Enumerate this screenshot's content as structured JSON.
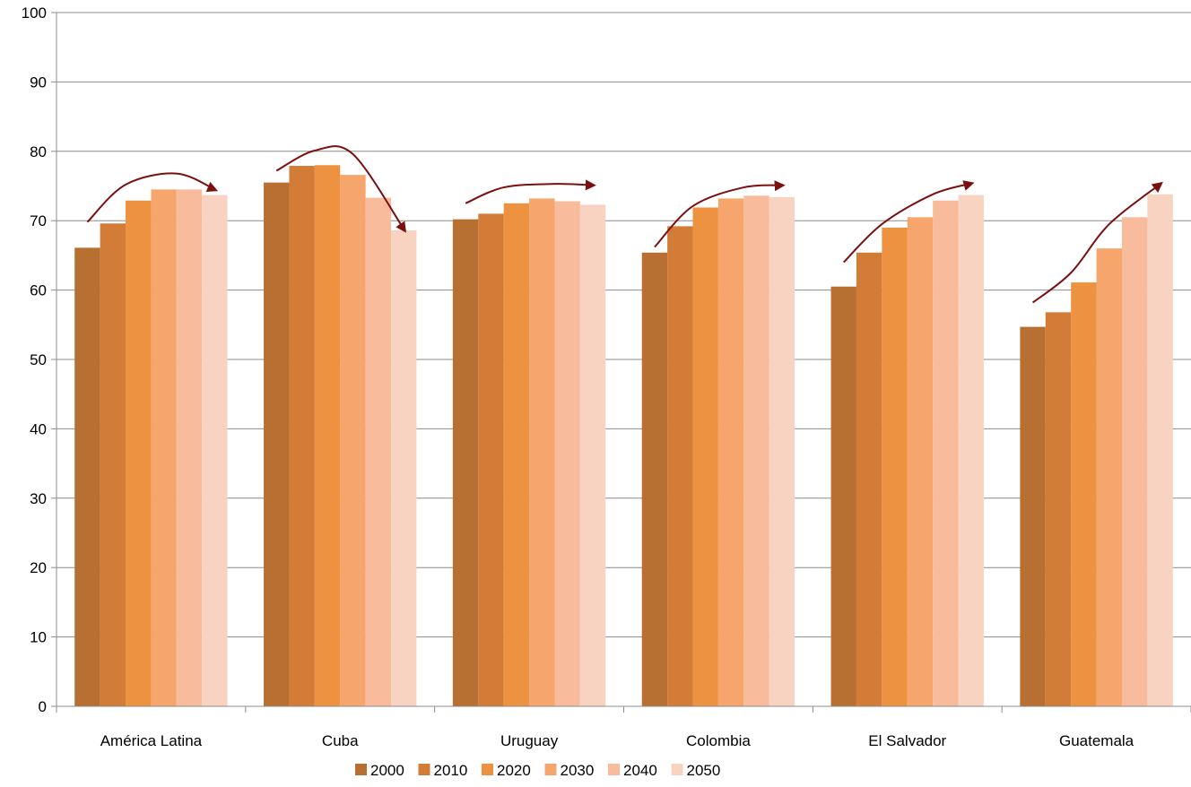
{
  "chart_data": {
    "type": "bar",
    "title": "",
    "xlabel": "",
    "ylabel": "",
    "ylim": [
      0,
      100
    ],
    "yticks": [
      0,
      10,
      20,
      30,
      40,
      50,
      60,
      70,
      80,
      90,
      100
    ],
    "grid": true,
    "legend_position": "bottom",
    "categories": [
      "América Latina",
      "Cuba",
      "Uruguay",
      "Colombia",
      "El Salvador",
      "Guatemala"
    ],
    "series": [
      {
        "name": "2000",
        "color": "#b86f32",
        "values": [
          66.1,
          75.5,
          70.2,
          65.4,
          60.5,
          54.7
        ]
      },
      {
        "name": "2010",
        "color": "#d27c38",
        "values": [
          69.6,
          77.9,
          71.0,
          69.2,
          65.4,
          56.8
        ]
      },
      {
        "name": "2020",
        "color": "#ed9240",
        "values": [
          72.9,
          78.0,
          72.5,
          71.9,
          69.0,
          61.1
        ]
      },
      {
        "name": "2030",
        "color": "#f6a66c",
        "values": [
          74.5,
          76.6,
          73.2,
          73.2,
          70.5,
          66.0
        ]
      },
      {
        "name": "2040",
        "color": "#f8bc9c",
        "values": [
          74.5,
          73.3,
          72.8,
          73.6,
          72.9,
          70.5
        ]
      },
      {
        "name": "2050",
        "color": "#f9d3c1",
        "values": [
          73.7,
          68.6,
          72.3,
          73.4,
          73.7,
          73.8
        ]
      }
    ],
    "annotations": [
      {
        "kind": "trend-arrow",
        "category": "América Latina",
        "color": "#7b1010",
        "points": [
          [
            0.5,
            69.8
          ],
          [
            2.0,
            75.2
          ],
          [
            4.0,
            76.8
          ],
          [
            5.55,
            74.4
          ]
        ]
      },
      {
        "kind": "trend-arrow",
        "category": "Cuba",
        "color": "#7b1010",
        "points": [
          [
            0.5,
            77.2
          ],
          [
            2.0,
            80.1
          ],
          [
            3.5,
            79.6
          ],
          [
            5.55,
            68.5
          ]
        ]
      },
      {
        "kind": "trend-arrow",
        "category": "Uruguay",
        "color": "#7b1010",
        "points": [
          [
            0.5,
            72.5
          ],
          [
            2.0,
            74.8
          ],
          [
            4.0,
            75.3
          ],
          [
            5.55,
            75.1
          ]
        ]
      },
      {
        "kind": "trend-arrow",
        "category": "Colombia",
        "color": "#7b1010",
        "points": [
          [
            0.5,
            66.2
          ],
          [
            2.0,
            72.1
          ],
          [
            4.0,
            74.8
          ],
          [
            5.55,
            75.1
          ]
        ]
      },
      {
        "kind": "trend-arrow",
        "category": "El Salvador",
        "color": "#7b1010",
        "points": [
          [
            0.5,
            64.0
          ],
          [
            2.0,
            69.5
          ],
          [
            4.0,
            73.8
          ],
          [
            5.55,
            75.4
          ]
        ]
      },
      {
        "kind": "trend-arrow",
        "category": "Guatemala",
        "color": "#7b1010",
        "points": [
          [
            0.5,
            58.2
          ],
          [
            2.0,
            62.5
          ],
          [
            3.5,
            69.5
          ],
          [
            5.55,
            75.4
          ]
        ]
      }
    ]
  }
}
